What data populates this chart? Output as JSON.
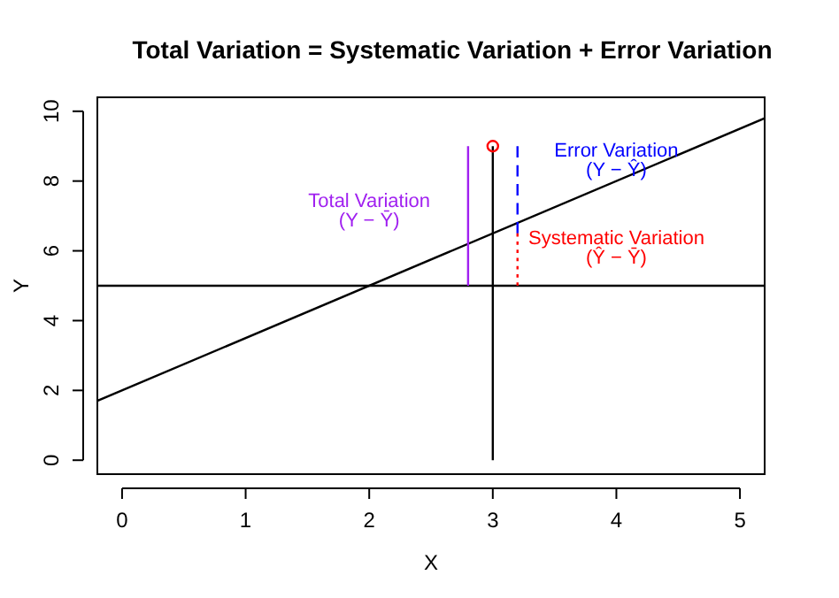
{
  "chart_data": {
    "type": "line",
    "title": "Total Variation = Systematic Variation + Error Variation",
    "xlabel": "X",
    "ylabel": "Y",
    "xlim": [
      -0.2,
      5.2
    ],
    "ylim": [
      -0.4,
      10.4
    ],
    "xticks": [
      0,
      1,
      2,
      3,
      4,
      5
    ],
    "yticks": [
      0,
      2,
      4,
      6,
      8,
      10
    ],
    "marker": "none",
    "series": [
      {
        "color": "#000000",
        "x": [
          -0.2,
          5.2
        ],
        "values": [
          1.7,
          9.8
        ],
        "line_style": "solid"
      },
      {
        "color": "#000000",
        "x": [
          -0.2,
          5.2
        ],
        "values": [
          5,
          5
        ],
        "line_style": "solid"
      },
      {
        "color": "#000000",
        "x": [
          3,
          3
        ],
        "values": [
          0,
          9
        ],
        "line_style": "solid"
      },
      {
        "name": "Total Variation\n(Y − Ȳ)",
        "color": "#a020f0",
        "x": [
          2.8,
          2.8
        ],
        "values": [
          5,
          9
        ],
        "line_style": "solid"
      },
      {
        "name": "Error Variation\n(Y − Ŷ)",
        "color": "#0000ff",
        "x": [
          3.2,
          3.2
        ],
        "values": [
          9,
          6.5
        ],
        "line_style": "dashed"
      },
      {
        "name": "Systematic Variation\n(Ŷ − Ȳ)",
        "color": "#ff0000",
        "x": [
          3.2,
          3.2
        ],
        "values": [
          6.5,
          5
        ],
        "line_style": "dotted"
      },
      {
        "type": "scatter",
        "color": "#ff0000",
        "x": [
          3
        ],
        "values": [
          9
        ],
        "marker": "circle"
      }
    ]
  }
}
